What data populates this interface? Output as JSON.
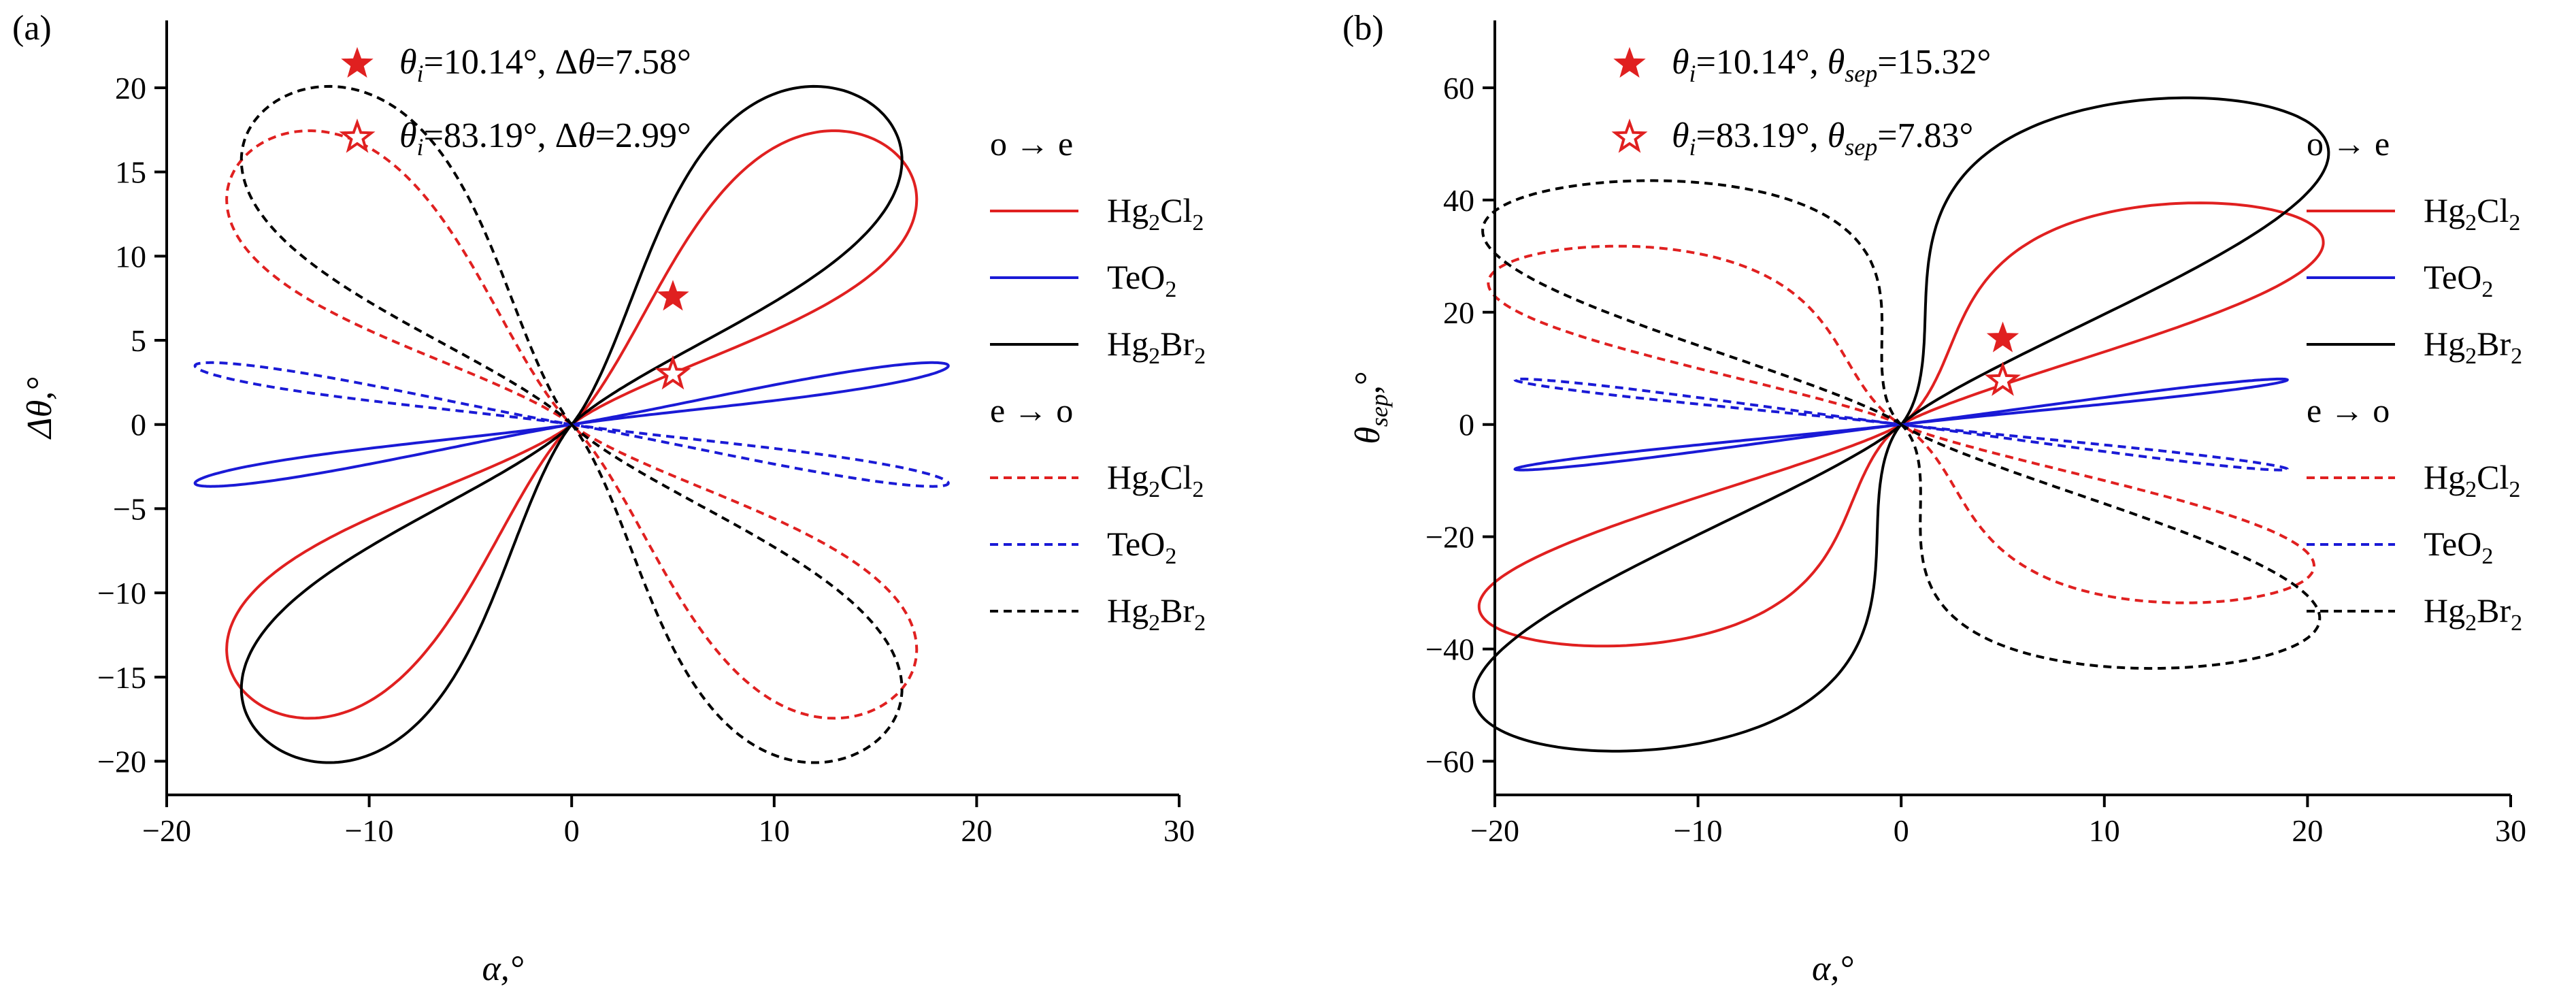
{
  "chart_data": [
    {
      "panel": "(a)",
      "type": "line",
      "description": "Parametric loops of acoustic-optic angular deviation vs alpha",
      "xlabel": "α,°",
      "ylabel": "Δθ,°",
      "xlim": [
        -20,
        30
      ],
      "ylim": [
        -22,
        24
      ],
      "xticks": [
        -20,
        -10,
        0,
        10,
        20,
        30
      ],
      "yticks": [
        -20,
        -15,
        -10,
        -5,
        0,
        5,
        10,
        15,
        20
      ],
      "xtick_labels": [
        "−20",
        "−10",
        "0",
        "10",
        "20",
        "30"
      ],
      "ytick_labels": [
        "−20",
        "−15",
        "−10",
        "−5",
        "0",
        "5",
        "10",
        "15",
        "20"
      ],
      "legend": {
        "group1_title": "o → e",
        "group2_title": "e → o",
        "entries": [
          {
            "group": "o → e",
            "name": "Hg2Cl2",
            "base": "Hg",
            "sub1": "2",
            "mid": "Cl",
            "sub2": "2",
            "color": "#e02020",
            "dash": "solid"
          },
          {
            "group": "o → e",
            "name": "TeO2",
            "base": "TeO",
            "sub1": "2",
            "mid": "",
            "sub2": "",
            "color": "#1a1ad6",
            "dash": "solid"
          },
          {
            "group": "o → e",
            "name": "Hg2Br2",
            "base": "Hg",
            "sub1": "2",
            "mid": "Br",
            "sub2": "2",
            "color": "#000000",
            "dash": "solid"
          },
          {
            "group": "e → o",
            "name": "Hg2Cl2",
            "base": "Hg",
            "sub1": "2",
            "mid": "Cl",
            "sub2": "2",
            "color": "#e02020",
            "dash": "dashed"
          },
          {
            "group": "e → o",
            "name": "TeO2",
            "base": "TeO",
            "sub1": "2",
            "mid": "",
            "sub2": "",
            "color": "#1a1ad6",
            "dash": "dashed"
          },
          {
            "group": "e → o",
            "name": "Hg2Br2",
            "base": "Hg",
            "sub1": "2",
            "mid": "Br",
            "sub2": "2",
            "color": "#000000",
            "dash": "dashed"
          }
        ]
      },
      "markers": [
        {
          "shape": "filled-star",
          "x": 5.0,
          "y": 7.58,
          "label_prefix": "θ",
          "label_sub": "i",
          "label_eq": "=10.14°, Δ",
          "label_var": "θ",
          "label_var_sub": "",
          "label_value": "=7.58°",
          "color": "#e02020"
        },
        {
          "shape": "open-star",
          "x": 5.0,
          "y": 2.99,
          "label_prefix": "θ",
          "label_sub": "i",
          "label_eq": "=83.19°, Δ",
          "label_var": "θ",
          "label_var_sub": "",
          "label_value": "=2.99°",
          "color": "#e02020"
        }
      ],
      "series": [
        {
          "name": "Hg2Cl2 o→e",
          "color": "#e02020",
          "dash": "solid",
          "lobes": [
            {
              "tip": [
                15.8,
                16.3
              ],
              "width": 0.3
            },
            {
              "tip": [
                -15.8,
                -16.3
              ],
              "width": 0.3
            }
          ]
        },
        {
          "name": "TeO2 o→e",
          "color": "#1a1ad6",
          "dash": "solid",
          "lobes": [
            {
              "tip": [
                18.6,
                3.5
              ],
              "width": 0.045
            },
            {
              "tip": [
                -18.6,
                -3.5
              ],
              "width": 0.045
            }
          ]
        },
        {
          "name": "Hg2Br2 o→e",
          "color": "#000000",
          "dash": "solid",
          "lobes": [
            {
              "tip": [
                14.6,
                19.2
              ],
              "width": 0.3
            },
            {
              "tip": [
                -14.6,
                -19.2
              ],
              "width": 0.3
            }
          ]
        },
        {
          "name": "Hg2Cl2 e→o",
          "color": "#e02020",
          "dash": "dashed",
          "lobes": [
            {
              "tip": [
                15.8,
                -16.3
              ],
              "width": 0.3
            },
            {
              "tip": [
                -15.8,
                16.3
              ],
              "width": 0.3
            }
          ]
        },
        {
          "name": "TeO2 e→o",
          "color": "#1a1ad6",
          "dash": "dashed",
          "lobes": [
            {
              "tip": [
                18.6,
                -3.5
              ],
              "width": 0.045
            },
            {
              "tip": [
                -18.6,
                3.5
              ],
              "width": 0.045
            }
          ]
        },
        {
          "name": "Hg2Br2 e→o",
          "color": "#000000",
          "dash": "dashed",
          "lobes": [
            {
              "tip": [
                14.6,
                -19.2
              ],
              "width": 0.3
            },
            {
              "tip": [
                -14.6,
                19.2
              ],
              "width": 0.3
            }
          ]
        }
      ]
    },
    {
      "panel": "(b)",
      "type": "line",
      "description": "Parametric loops of separation angle vs alpha",
      "xlabel": "α,°",
      "ylabel": "θsep,°",
      "ylabel_base": "θ",
      "ylabel_sub": "sep",
      "ylabel_tail": ",°",
      "xlim": [
        -20,
        30
      ],
      "ylim": [
        -66,
        72
      ],
      "xticks": [
        -20,
        -10,
        0,
        10,
        20,
        30
      ],
      "yticks": [
        -60,
        -40,
        -20,
        0,
        20,
        40,
        60
      ],
      "xtick_labels": [
        "−20",
        "−10",
        "0",
        "10",
        "20",
        "30"
      ],
      "ytick_labels": [
        "−60",
        "−40",
        "−20",
        "0",
        "20",
        "40",
        "60"
      ],
      "legend": {
        "group1_title": "o → e",
        "group2_title": "e → o",
        "entries": [
          {
            "group": "o → e",
            "name": "Hg2Cl2",
            "base": "Hg",
            "sub1": "2",
            "mid": "Cl",
            "sub2": "2",
            "color": "#e02020",
            "dash": "solid"
          },
          {
            "group": "o → e",
            "name": "TeO2",
            "base": "TeO",
            "sub1": "2",
            "mid": "",
            "sub2": "",
            "color": "#1a1ad6",
            "dash": "solid"
          },
          {
            "group": "o → e",
            "name": "Hg2Br2",
            "base": "Hg",
            "sub1": "2",
            "mid": "Br",
            "sub2": "2",
            "color": "#000000",
            "dash": "solid"
          },
          {
            "group": "e → o",
            "name": "Hg2Cl2",
            "base": "Hg",
            "sub1": "2",
            "mid": "Cl",
            "sub2": "2",
            "color": "#e02020",
            "dash": "dashed"
          },
          {
            "group": "e → o",
            "name": "TeO2",
            "base": "TeO",
            "sub1": "2",
            "mid": "",
            "sub2": "",
            "color": "#1a1ad6",
            "dash": "dashed"
          },
          {
            "group": "e → o",
            "name": "Hg2Br2",
            "base": "Hg",
            "sub1": "2",
            "mid": "Br",
            "sub2": "2",
            "color": "#000000",
            "dash": "dashed"
          }
        ]
      },
      "markers": [
        {
          "shape": "filled-star",
          "x": 5.0,
          "y": 15.32,
          "label_prefix": "θ",
          "label_sub": "i",
          "label_eq": "=10.14°, ",
          "label_var": "θ",
          "label_var_sub": "sep",
          "label_value": "=15.32°",
          "color": "#e02020"
        },
        {
          "shape": "open-star",
          "x": 5.0,
          "y": 7.83,
          "label_prefix": "θ",
          "label_sub": "i",
          "label_eq": "=83.19°, ",
          "label_var": "θ",
          "label_var_sub": "sep",
          "label_value": "=7.83°",
          "color": "#e02020"
        }
      ],
      "series": [
        {
          "name": "Hg2Cl2 o→e",
          "color": "#e02020",
          "dash": "solid",
          "lobes": [
            {
              "tip": [
                17.0,
                39.0
              ],
              "width": 0.26
            },
            {
              "tip": [
                -17.0,
                -39.0
              ],
              "width": 0.26
            }
          ]
        },
        {
          "name": "TeO2 o→e",
          "color": "#1a1ad6",
          "dash": "solid",
          "lobes": [
            {
              "tip": [
                19.0,
                8.0
              ],
              "width": 0.05
            },
            {
              "tip": [
                -19.0,
                -8.0
              ],
              "width": 0.05
            }
          ]
        },
        {
          "name": "Hg2Br2 o→e",
          "color": "#000000",
          "dash": "solid",
          "lobes": [
            {
              "tip": [
                15.6,
                58.0
              ],
              "width": 0.22
            },
            {
              "tip": [
                -15.6,
                -58.0
              ],
              "width": 0.22
            }
          ]
        },
        {
          "name": "Hg2Cl2 e→o",
          "color": "#e02020",
          "dash": "dashed",
          "lobes": [
            {
              "tip": [
                17.0,
                -31.0
              ],
              "width": 0.3
            },
            {
              "tip": [
                -17.0,
                31.0
              ],
              "width": 0.3
            }
          ]
        },
        {
          "name": "TeO2 e→o",
          "color": "#1a1ad6",
          "dash": "dashed",
          "lobes": [
            {
              "tip": [
                19.0,
                -8.0
              ],
              "width": 0.05
            },
            {
              "tip": [
                -19.0,
                8.0
              ],
              "width": 0.05
            }
          ]
        },
        {
          "name": "Hg2Br2 e→o",
          "color": "#000000",
          "dash": "dashed",
          "lobes": [
            {
              "tip": [
                15.0,
                -43.0
              ],
              "width": 0.3
            },
            {
              "tip": [
                -15.0,
                43.0
              ],
              "width": 0.3
            }
          ]
        }
      ]
    }
  ]
}
